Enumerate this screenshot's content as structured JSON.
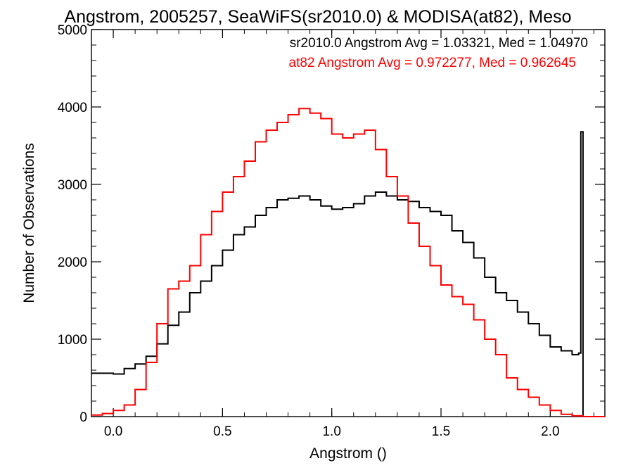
{
  "chart_data": {
    "type": "line",
    "title": "Angstrom, 2005257, SeaWiFS(sr2010.0) & MODISA(at82), Meso",
    "xlabel": "Angstrom ()",
    "ylabel": "Number of Observations",
    "xlim": [
      -0.1,
      2.25
    ],
    "ylim": [
      0,
      5000
    ],
    "xticks": [
      0.0,
      0.5,
      1.0,
      1.5,
      2.0
    ],
    "xtick_labels": [
      "0.0",
      "0.5",
      "1.0",
      "1.5",
      "2.0"
    ],
    "yticks": [
      0,
      1000,
      2000,
      3000,
      4000,
      5000
    ],
    "ytick_labels": [
      "0",
      "1000",
      "2000",
      "3000",
      "4000",
      "5000"
    ],
    "grid": false,
    "legend_position": "top-right",
    "annotations": [
      {
        "text": "sr2010.0 Angstrom Avg = 1.03321, Med = 1.04970",
        "color": "#000000"
      },
      {
        "text": "at82 Angstrom Avg = 0.972277, Med = 0.962645",
        "color": "#ff0000"
      }
    ],
    "series": [
      {
        "color": "#000000",
        "x": [
          -0.1,
          -0.05,
          0.0,
          0.05,
          0.1,
          0.15,
          0.2,
          0.25,
          0.3,
          0.35,
          0.4,
          0.45,
          0.5,
          0.55,
          0.6,
          0.65,
          0.7,
          0.75,
          0.8,
          0.85,
          0.9,
          0.95,
          1.0,
          1.05,
          1.1,
          1.15,
          1.2,
          1.25,
          1.3,
          1.35,
          1.4,
          1.45,
          1.5,
          1.55,
          1.6,
          1.65,
          1.7,
          1.75,
          1.8,
          1.85,
          1.9,
          1.95,
          2.0,
          2.05,
          2.1,
          2.13,
          2.14,
          2.15,
          2.25
        ],
        "values": [
          560,
          560,
          550,
          620,
          680,
          780,
          940,
          1180,
          1350,
          1600,
          1750,
          1950,
          2150,
          2350,
          2450,
          2600,
          2700,
          2800,
          2820,
          2850,
          2800,
          2720,
          2680,
          2700,
          2750,
          2850,
          2900,
          2850,
          2800,
          2780,
          2700,
          2650,
          2600,
          2400,
          2250,
          2050,
          1800,
          1600,
          1500,
          1350,
          1200,
          1050,
          900,
          850,
          800,
          820,
          3680,
          0,
          0
        ]
      },
      {
        "color": "#ff0000",
        "x": [
          -0.1,
          -0.05,
          0.0,
          0.05,
          0.1,
          0.15,
          0.2,
          0.25,
          0.3,
          0.35,
          0.4,
          0.45,
          0.5,
          0.55,
          0.6,
          0.65,
          0.7,
          0.75,
          0.8,
          0.85,
          0.9,
          0.95,
          1.0,
          1.05,
          1.1,
          1.15,
          1.2,
          1.25,
          1.3,
          1.35,
          1.4,
          1.45,
          1.5,
          1.55,
          1.6,
          1.65,
          1.7,
          1.75,
          1.8,
          1.85,
          1.9,
          1.95,
          2.0,
          2.05,
          2.1,
          2.15,
          2.25
        ],
        "values": [
          20,
          40,
          80,
          150,
          350,
          700,
          1200,
          1650,
          1750,
          1950,
          2350,
          2650,
          2900,
          3100,
          3300,
          3550,
          3700,
          3800,
          3900,
          3980,
          3920,
          3850,
          3650,
          3600,
          3650,
          3700,
          3450,
          3100,
          2850,
          2500,
          2200,
          1950,
          1700,
          1550,
          1450,
          1250,
          1000,
          800,
          500,
          350,
          250,
          150,
          80,
          30,
          10,
          0,
          0
        ]
      }
    ]
  }
}
